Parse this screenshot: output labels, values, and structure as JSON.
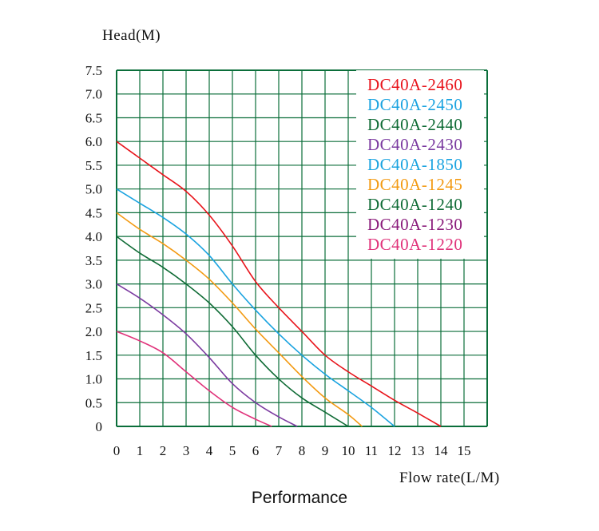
{
  "chart_data": {
    "type": "line",
    "title": "Performance",
    "xlabel": "Flow rate(L/M)",
    "ylabel": "Head(M)",
    "xlim": [
      0,
      15
    ],
    "ylim": [
      0,
      7.5
    ],
    "x_ticks": [
      "0",
      "1",
      "2",
      "3",
      "4",
      "5",
      "6",
      "7",
      "8",
      "9",
      "10",
      "11",
      "12",
      "13",
      "14",
      "15"
    ],
    "y_ticks": [
      "0",
      "0.5",
      "1.0",
      "1.5",
      "2.0",
      "2.5",
      "3.0",
      "3.5",
      "4.0",
      "4.5",
      "5.0",
      "5.5",
      "6.0",
      "6.5",
      "7.0",
      "7.5"
    ],
    "grid": true,
    "grid_color": "#0b6e3a",
    "legend_position": "top-right",
    "legend": [
      {
        "name": "DC40A-2460",
        "color": "#e8141b"
      },
      {
        "name": "DC40A-2450",
        "color": "#1aa3e0"
      },
      {
        "name": "DC40A-2440",
        "color": "#0f6b35"
      },
      {
        "name": "DC40A-2430",
        "color": "#7b3aa0"
      },
      {
        "name": "DC40A-1850",
        "color": "#1aa3e0"
      },
      {
        "name": "DC40A-1245",
        "color": "#f39a12"
      },
      {
        "name": "DC40A-1240",
        "color": "#0f6b35"
      },
      {
        "name": "DC40A-1230",
        "color": "#8a1a7a"
      },
      {
        "name": "DC40A-1220",
        "color": "#e0327a"
      }
    ],
    "series": [
      {
        "color": "#e8141b",
        "points": [
          [
            0,
            6.0
          ],
          [
            1,
            5.65
          ],
          [
            2,
            5.3
          ],
          [
            3,
            4.95
          ],
          [
            4,
            4.45
          ],
          [
            5,
            3.8
          ],
          [
            6,
            3.05
          ],
          [
            7,
            2.5
          ],
          [
            8,
            2.0
          ],
          [
            9,
            1.5
          ],
          [
            10,
            1.15
          ],
          [
            11,
            0.85
          ],
          [
            12,
            0.55
          ],
          [
            13,
            0.28
          ],
          [
            14,
            0
          ]
        ]
      },
      {
        "color": "#1aa3e0",
        "points": [
          [
            0,
            5.0
          ],
          [
            1,
            4.7
          ],
          [
            2,
            4.4
          ],
          [
            3,
            4.05
          ],
          [
            4,
            3.6
          ],
          [
            5,
            3.0
          ],
          [
            6,
            2.45
          ],
          [
            7,
            1.95
          ],
          [
            8,
            1.5
          ],
          [
            9,
            1.1
          ],
          [
            10,
            0.75
          ],
          [
            11,
            0.4
          ],
          [
            12,
            0
          ]
        ]
      },
      {
        "color": "#f39a12",
        "points": [
          [
            0,
            4.5
          ],
          [
            1,
            4.15
          ],
          [
            2,
            3.85
          ],
          [
            3,
            3.5
          ],
          [
            4,
            3.1
          ],
          [
            5,
            2.6
          ],
          [
            6,
            2.05
          ],
          [
            7,
            1.55
          ],
          [
            8,
            1.05
          ],
          [
            9,
            0.6
          ],
          [
            10,
            0.25
          ],
          [
            10.6,
            0
          ]
        ]
      },
      {
        "color": "#0f6b35",
        "points": [
          [
            0,
            4.0
          ],
          [
            1,
            3.65
          ],
          [
            2,
            3.35
          ],
          [
            3,
            3.0
          ],
          [
            4,
            2.6
          ],
          [
            5,
            2.1
          ],
          [
            6,
            1.5
          ],
          [
            7,
            1.0
          ],
          [
            8,
            0.6
          ],
          [
            9,
            0.3
          ],
          [
            10,
            0
          ]
        ]
      },
      {
        "color": "#7b3aa0",
        "points": [
          [
            0,
            3.0
          ],
          [
            1,
            2.7
          ],
          [
            2,
            2.35
          ],
          [
            3,
            1.95
          ],
          [
            4,
            1.45
          ],
          [
            5,
            0.9
          ],
          [
            6,
            0.5
          ],
          [
            7,
            0.2
          ],
          [
            7.8,
            0
          ]
        ]
      },
      {
        "color": "#e0327a",
        "points": [
          [
            0,
            2.0
          ],
          [
            1,
            1.8
          ],
          [
            2,
            1.55
          ],
          [
            3,
            1.15
          ],
          [
            4,
            0.75
          ],
          [
            5,
            0.4
          ],
          [
            6,
            0.15
          ],
          [
            6.7,
            0
          ]
        ]
      }
    ]
  }
}
